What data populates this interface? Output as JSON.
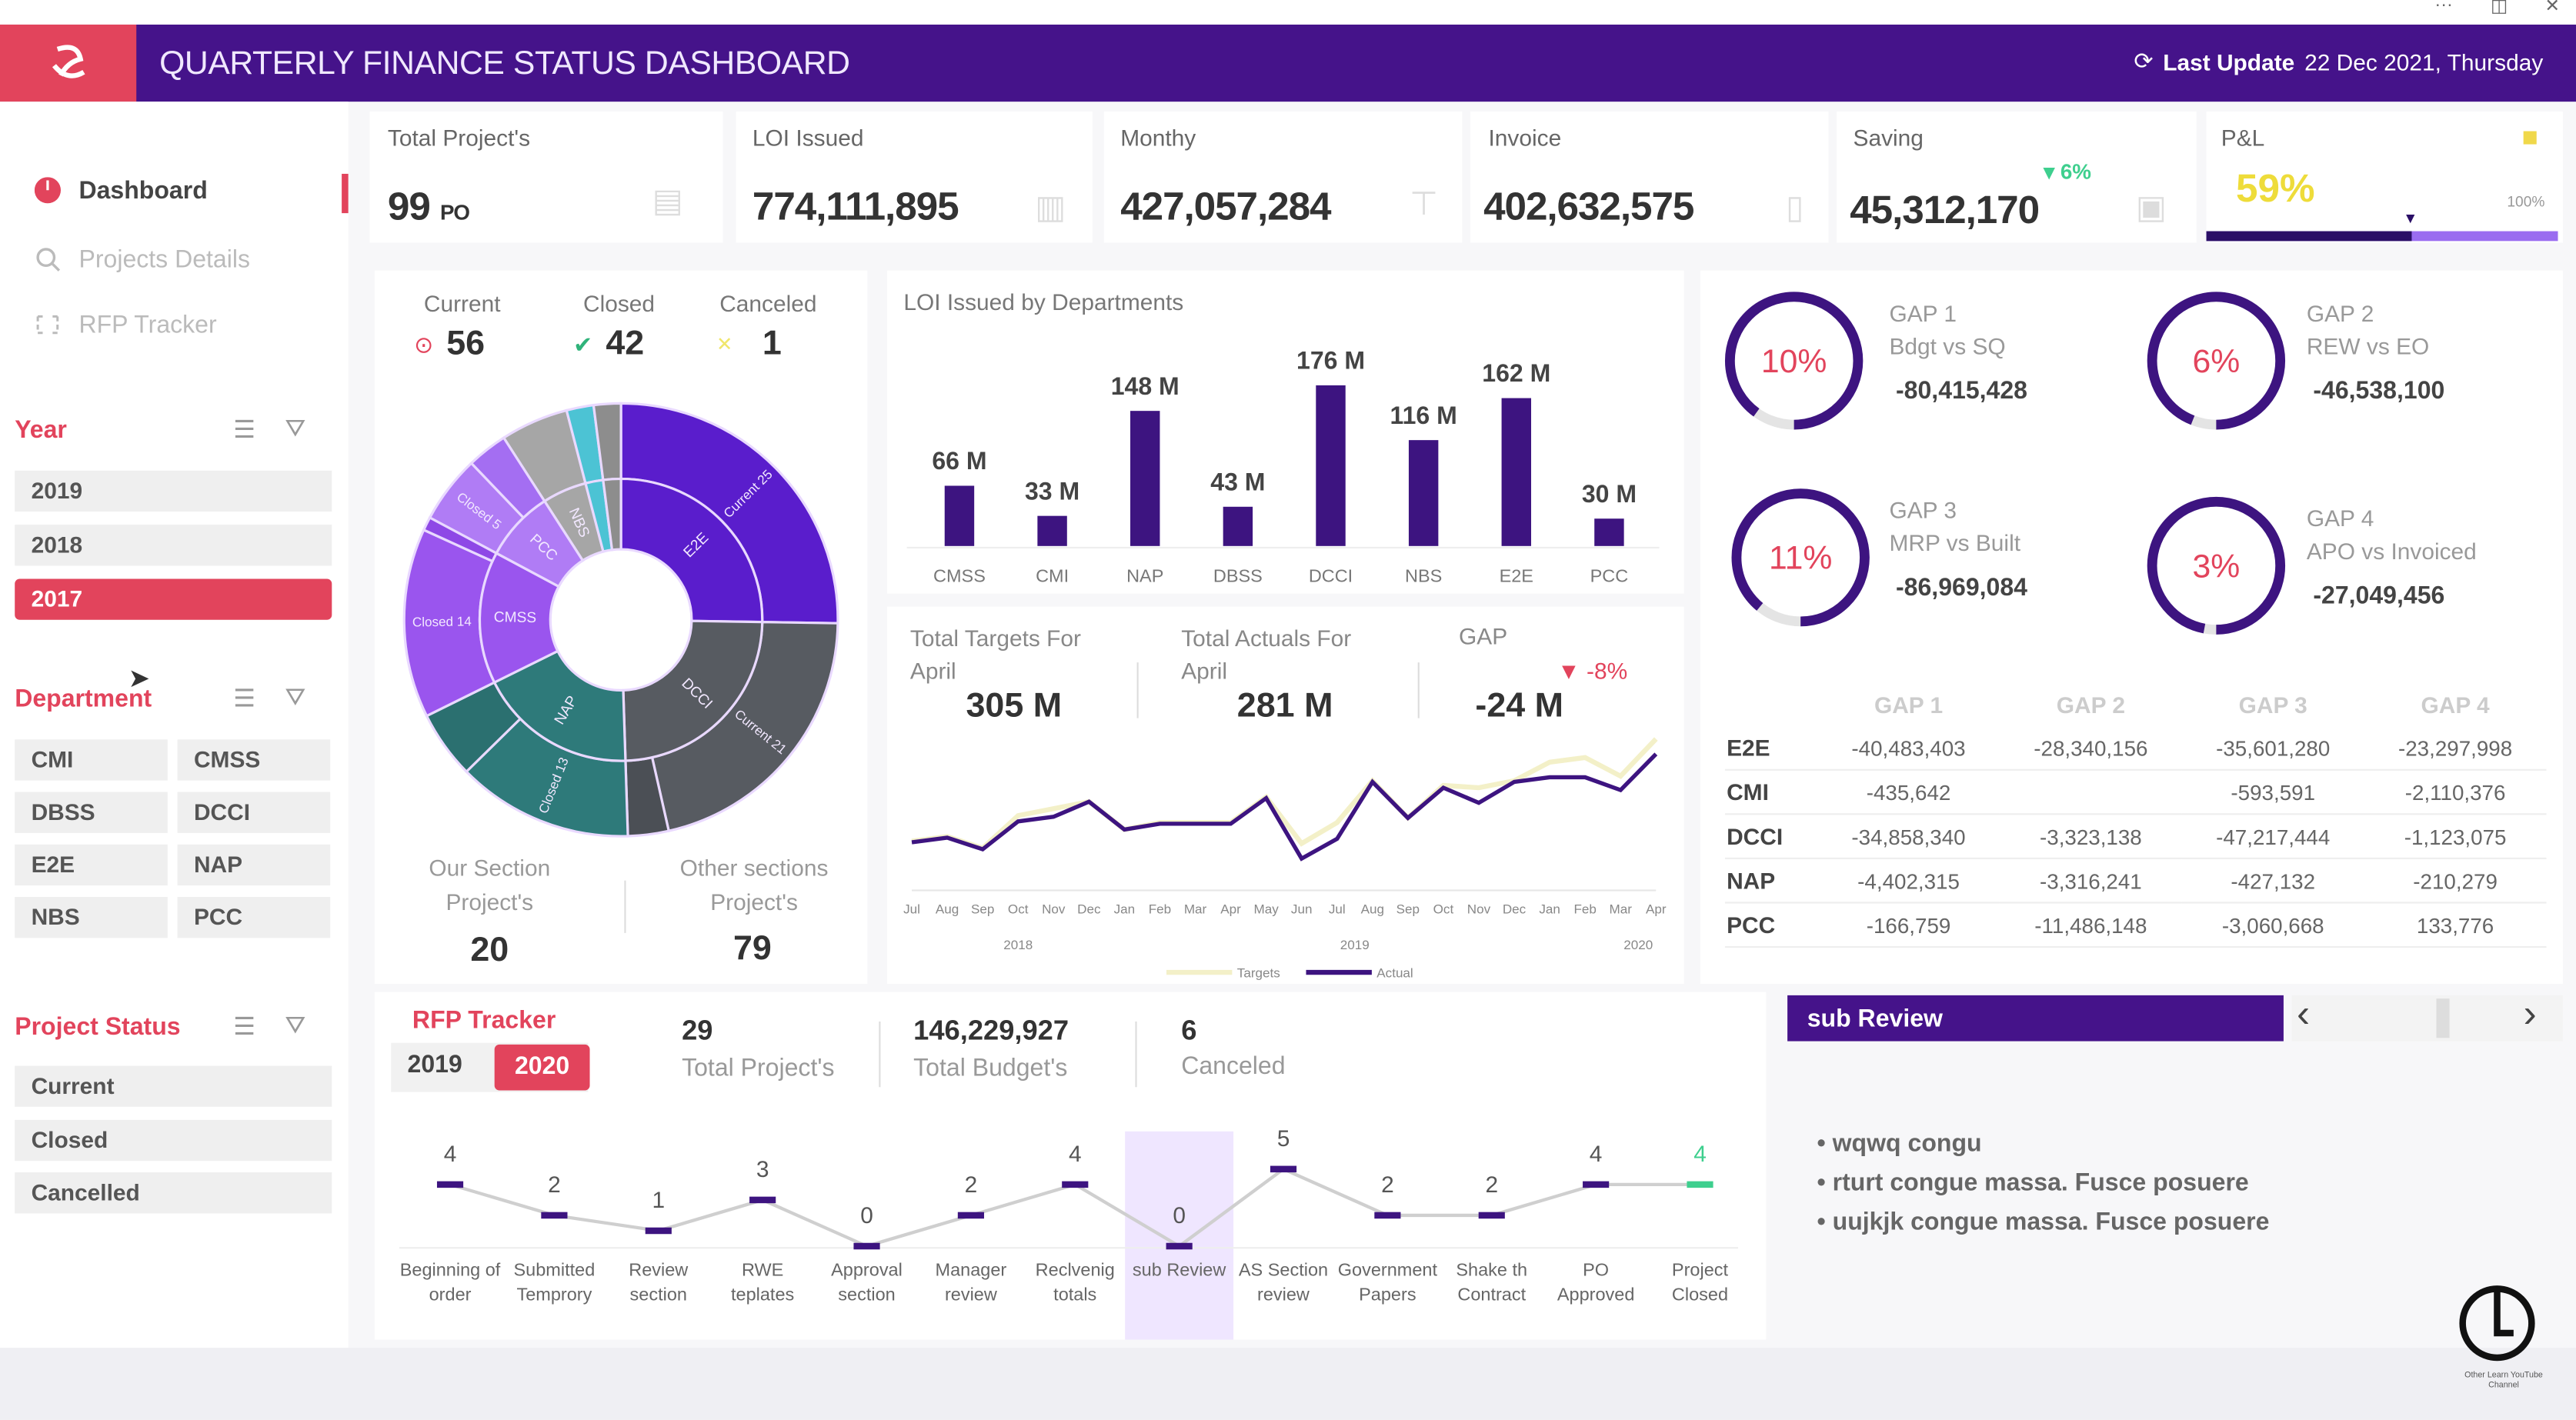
{
  "window": {
    "controls": [
      "···",
      "◫",
      "✕"
    ]
  },
  "header": {
    "title": "QUARTERLY FINANCE STATUS DASHBOARD",
    "last_update_label": "Last Update",
    "last_update_value": "22 Dec 2021, Thursday",
    "colors": {
      "bar": "#45138a",
      "logo_bg": "#e2445c"
    }
  },
  "sidebar": {
    "nav": [
      {
        "label": "Dashboard",
        "icon": "pie-chart-icon",
        "active": true
      },
      {
        "label": "Projects Details",
        "icon": "search-icon",
        "active": false
      },
      {
        "label": "RFP Tracker",
        "icon": "tracker-icon",
        "active": false
      }
    ],
    "year": {
      "title": "Year",
      "items": [
        "2019",
        "2018",
        "2017"
      ],
      "selected": "2017"
    },
    "department": {
      "title": "Department",
      "items": [
        "CMI",
        "CMSS",
        "DBSS",
        "DCCI",
        "E2E",
        "NAP",
        "NBS",
        "PCC"
      ]
    },
    "project_status": {
      "title": "Project Status",
      "items": [
        "Current",
        "Closed",
        "Cancelled"
      ]
    }
  },
  "kpis": [
    {
      "label": "Total Project's",
      "value": "99",
      "unit": "PO"
    },
    {
      "label": "LOI Issued",
      "value": "774,111,895"
    },
    {
      "label": "Monthy",
      "value": "427,057,284"
    },
    {
      "label": "Invoice",
      "value": "402,632,575"
    },
    {
      "label": "Saving",
      "value": "45,312,170",
      "delta": "▾ 6%"
    },
    {
      "label": "P&L",
      "value": "59%",
      "max_label": "100%",
      "progress": 0.59
    }
  ],
  "status_counts": {
    "current": {
      "label": "Current",
      "value": "56"
    },
    "closed": {
      "label": "Closed",
      "value": "42"
    },
    "canceled": {
      "label": "Canceled",
      "value": "1"
    }
  },
  "sections": {
    "ours": {
      "label": "Our Section Project's",
      "value": "20"
    },
    "others": {
      "label": "Other sections Project's",
      "value": "79"
    }
  },
  "loi_panel": {
    "title": "LOI Issued by Departments"
  },
  "targets": {
    "targets_label": "Total Targets For April",
    "targets_value": "305 M",
    "actuals_label": "Total Actuals For April",
    "actuals_value": "281 M",
    "gap_label": "GAP",
    "gap_value": "-24 M",
    "gap_pct": "▼ -8%"
  },
  "gaps": [
    {
      "title": "GAP 1",
      "desc": "Bdgt vs SQ",
      "value": "-80,415,428",
      "pct": "10%",
      "fraction": 0.1
    },
    {
      "title": "GAP 2",
      "desc": "REW vs EO",
      "value": "-46,538,100",
      "pct": "6%",
      "fraction": 0.06
    },
    {
      "title": "GAP 3",
      "desc": "MRP vs Built",
      "value": "-86,969,084",
      "pct": "11%",
      "fraction": 0.11
    },
    {
      "title": "GAP 4",
      "desc": "APO vs Invoiced",
      "value": "-27,049,456",
      "pct": "3%",
      "fraction": 0.03
    }
  ],
  "gap_table": {
    "headers": [
      "",
      "GAP 1",
      "GAP 2",
      "GAP 3",
      "GAP 4"
    ],
    "rows": [
      [
        "E2E",
        "-40,483,403",
        "-28,340,156",
        "-35,601,280",
        "-23,297,998"
      ],
      [
        "CMI",
        "-435,642",
        "",
        "-593,591",
        "-2,110,376"
      ],
      [
        "DCCI",
        "-34,858,340",
        "-3,323,138",
        "-47,217,444",
        "-1,123,075"
      ],
      [
        "NAP",
        "-4,402,315",
        "-3,316,241",
        "-427,132",
        "-210,279"
      ],
      [
        "PCC",
        "-166,759",
        "-11,486,148",
        "-3,060,668",
        "133,776"
      ]
    ]
  },
  "rfp": {
    "title": "RFP Tracker",
    "years": [
      "2019",
      "2020"
    ],
    "selected_year": "2020",
    "total_projects": "29",
    "total_projects_label": "Total Project's",
    "total_budget": "146,229,927",
    "total_budget_label": "Total Budget's",
    "canceled": "6",
    "canceled_label": "Canceled"
  },
  "sub_review": {
    "title": "sub Review",
    "prev": "‹",
    "next": "›",
    "items": [
      "wqwq congu",
      "rturt  congue massa. Fusce posuere",
      "uujkjk congue massa. Fusce posuere"
    ]
  },
  "chart_data": [
    {
      "type": "sunburst",
      "inner": [
        {
          "label": "E2E",
          "value": 25,
          "color": "#5a1dcc"
        },
        {
          "label": "DCCI",
          "value": 24,
          "color": "#575b61"
        },
        {
          "label": "NAP",
          "value": 18,
          "color": "#2e7a7a"
        },
        {
          "label": "CMSS",
          "value": 15,
          "color": "#9a55ee"
        },
        {
          "label": "PCC",
          "value": 8,
          "color": "#b07cf5"
        },
        {
          "label": "NBS",
          "value": 5,
          "color": "#a6a6a6"
        },
        {
          "label": "",
          "value": 2,
          "color": "#4cc3d4"
        },
        {
          "label": "",
          "value": 2,
          "color": "#8d8d8d"
        }
      ],
      "outer": [
        {
          "label": "Current 25",
          "value": 25,
          "color": "#5a1dcc"
        },
        {
          "label": "Current 21",
          "value": 21,
          "color": "#575b61"
        },
        {
          "label": "",
          "value": 3,
          "color": "#4b4f55"
        },
        {
          "label": "Closed 13",
          "value": 13,
          "color": "#2e7a7a"
        },
        {
          "label": "",
          "value": 5,
          "color": "#2b7070"
        },
        {
          "label": "Closed 14",
          "value": 14,
          "color": "#9a55ee"
        },
        {
          "label": "",
          "value": 1,
          "color": "#8e48e6"
        },
        {
          "label": "Closed 5",
          "value": 5,
          "color": "#b07cf5"
        },
        {
          "label": "",
          "value": 3,
          "color": "#a46ef2"
        },
        {
          "label": "",
          "value": 5,
          "color": "#a6a6a6"
        },
        {
          "label": "",
          "value": 2,
          "color": "#4cc3d4"
        },
        {
          "label": "",
          "value": 2,
          "color": "#8d8d8d"
        }
      ]
    },
    {
      "type": "bar",
      "title": "LOI Issued by Departments",
      "categories": [
        "CMSS",
        "CMI",
        "NAP",
        "DBSS",
        "DCCI",
        "NBS",
        "E2E",
        "PCC"
      ],
      "values": [
        66,
        33,
        148,
        43,
        176,
        116,
        162,
        30
      ],
      "data_labels": [
        "66 M",
        "33 M",
        "148 M",
        "43 M",
        "176 M",
        "116 M",
        "162 M",
        "30 M"
      ],
      "color": "#3d1480"
    },
    {
      "type": "line",
      "x": [
        "Jul",
        "Aug",
        "Sep",
        "Oct",
        "Nov",
        "Dec",
        "Jan",
        "Feb",
        "Mar",
        "Apr",
        "May",
        "Jun",
        "Jul",
        "Aug",
        "Sep",
        "Oct",
        "Nov",
        "Dec",
        "Jan",
        "Feb",
        "Mar",
        "Apr"
      ],
      "year_labels": [
        "2018",
        "2019",
        "2020"
      ],
      "series": [
        {
          "name": "Targets",
          "color": "#f3f0c8",
          "values": [
            12,
            14,
            9,
            23,
            26,
            29,
            17,
            20,
            20,
            20,
            31,
            11,
            20,
            38,
            22,
            36,
            35,
            38,
            46,
            48,
            40,
            56
          ]
        },
        {
          "name": "Actual",
          "color": "#3d1480",
          "values": [
            11.5,
            13.5,
            8.5,
            20.5,
            22.5,
            29,
            17,
            19.5,
            19.5,
            19.5,
            30.5,
            4.5,
            13,
            37.5,
            22,
            35,
            28.5,
            37.5,
            39.5,
            39.5,
            34,
            49.5
          ]
        }
      ],
      "legend": "bottom"
    },
    {
      "type": "line",
      "categories": [
        [
          "Beginning of",
          "order"
        ],
        [
          "Submitted",
          "Temprory"
        ],
        [
          "Review",
          "section"
        ],
        [
          "RWE",
          "teplates"
        ],
        [
          "Approval",
          "section"
        ],
        [
          "Manager",
          "review"
        ],
        [
          "Reclvenig",
          "totals"
        ],
        [
          "sub Review",
          ""
        ],
        [
          "AS Section",
          "review"
        ],
        [
          "Government",
          "Papers"
        ],
        [
          "Shake th",
          "Contract"
        ],
        [
          "PO",
          "Approved"
        ],
        [
          "Project",
          "Closed"
        ]
      ],
      "values": [
        4,
        2,
        1,
        3,
        0,
        2,
        4,
        0,
        5,
        2,
        2,
        4,
        4
      ],
      "highlight": "sub Review",
      "colors": {
        "point": "#3d1480",
        "last_point": "#3ecf8e",
        "line": "#cfcfcf"
      }
    }
  ],
  "watermark": {
    "text": "Other Learn YouTube Channel"
  }
}
